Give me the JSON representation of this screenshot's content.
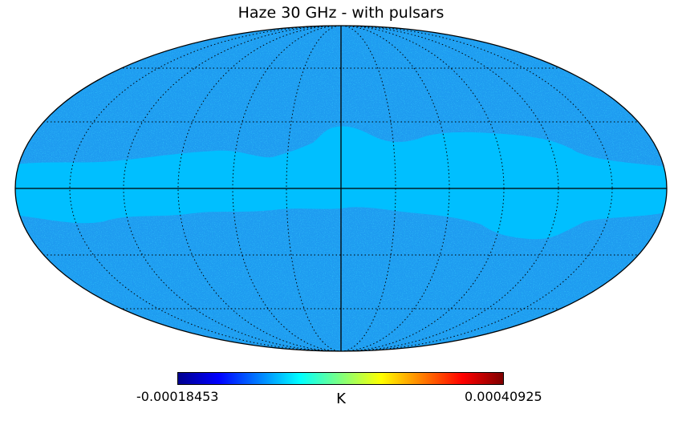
{
  "title": "Haze 30 GHz - with pulsars",
  "colorbar": {
    "min_label": "-0.00018453",
    "max_label": "0.00040925",
    "unit": "K",
    "colormap": "jet",
    "stops": [
      "#00008f",
      "#0000ff",
      "#007fff",
      "#00ffff",
      "#7fff7f",
      "#ffff00",
      "#ff7f00",
      "#ff0000",
      "#7f0000"
    ]
  },
  "map": {
    "projection": "mollweide",
    "graticule": true,
    "masked_region_color": "#00bfff",
    "base_color": "#1e9cf0"
  }
}
